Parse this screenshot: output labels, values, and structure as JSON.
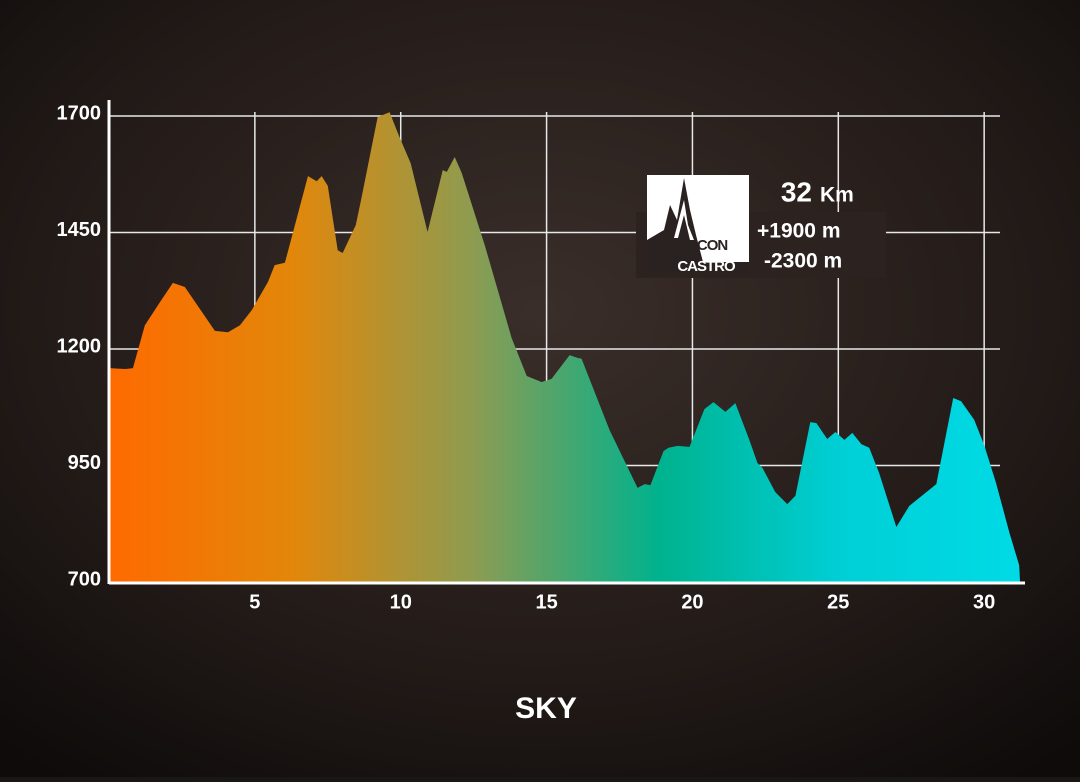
{
  "chart_data": {
    "type": "area",
    "title": "SKY",
    "x": [
      0,
      0.55,
      0.82,
      1.23,
      1.75,
      2.19,
      2.6,
      3.63,
      4.08,
      4.49,
      4.9,
      5.45,
      5.68,
      6.03,
      6.82,
      7.12,
      7.29,
      7.5,
      7.84,
      8.01,
      8.46,
      8.66,
      9.21,
      9.62,
      9.93,
      10.34,
      10.92,
      11.44,
      11.58,
      11.85,
      12.09,
      12.88,
      13.8,
      14.32,
      14.83,
      15.17,
      15.79,
      16.06,
      16.2,
      17.16,
      18.12,
      18.36,
      18.56,
      19.01,
      19.18,
      19.49,
      19.9,
      20.41,
      20.72,
      21.13,
      21.47,
      21.95,
      22.23,
      22.4,
      22.84,
      23.25,
      23.53,
      24.04,
      24.25,
      24.62,
      24.9,
      25.21,
      25.48,
      25.79,
      26.06,
      26.4,
      26.99,
      27.43,
      28.36,
      28.94,
      29.21,
      29.66,
      30,
      30.41,
      30.86,
      31.2,
      31.23
    ],
    "values": [
      1159,
      1157,
      1159,
      1251,
      1301,
      1342,
      1333,
      1239,
      1236,
      1251,
      1284,
      1344,
      1380,
      1385,
      1571,
      1560,
      1571,
      1550,
      1412,
      1406,
      1466,
      1526,
      1698,
      1708,
      1659,
      1599,
      1451,
      1584,
      1580,
      1612,
      1578,
      1423,
      1224,
      1142,
      1129,
      1136,
      1187,
      1181,
      1179,
      1026,
      902,
      910,
      908,
      981,
      988,
      992,
      990,
      1071,
      1086,
      1065,
      1084,
      1005,
      955,
      945,
      893,
      867,
      885,
      1043,
      1041,
      1007,
      1022,
      1005,
      1020,
      996,
      988,
      934,
      818,
      863,
      910,
      1095,
      1088,
      1048,
      994,
      912,
      807,
      736,
      700
    ],
    "gradient_colors": [
      "#ff6a00",
      "#e2870a",
      "#8c9c52",
      "#00b28e",
      "#00cfd6",
      "#00dbe6"
    ],
    "xlim": [
      0,
      31.4
    ],
    "ylim": [
      700,
      1720
    ],
    "xticks": [
      5,
      10,
      15,
      20,
      25,
      30
    ],
    "yticks": [
      700,
      950,
      1200,
      1450,
      1700
    ],
    "grid": true,
    "info": {
      "logo_top": "PICON",
      "logo_bottom": "CASTRO",
      "distance": "32",
      "distance_unit": "Km",
      "gain": "+1900 m",
      "loss": "-2300 m"
    }
  }
}
